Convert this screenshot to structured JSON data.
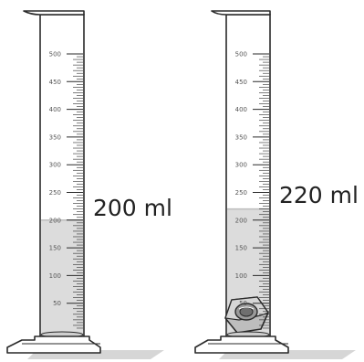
{
  "cylinders": [
    {
      "id": "left",
      "reading_label": "200 ml",
      "liquid_ml": 200,
      "has_object": false,
      "tick_labels": [
        "500",
        "450",
        "400",
        "350",
        "300",
        "250",
        "200",
        "150",
        "100",
        "50"
      ]
    },
    {
      "id": "right",
      "reading_label": "220 ml",
      "liquid_ml": 220,
      "has_object": true,
      "object_icon": "hex-nut-icon",
      "tick_labels": [
        "500",
        "450",
        "400",
        "350",
        "300",
        "250",
        "200",
        "150",
        "100",
        "50"
      ]
    }
  ],
  "scale": {
    "max_ml": 500,
    "major_step_ml": 50,
    "minor_step_ml": 10
  },
  "colors": {
    "outline": "#2a2a2a",
    "liquid": "#dcdcdc",
    "liquid_edge": "#c4c4c4",
    "glass": "#ffffff",
    "shadow": "#d0d0d0",
    "nut_metal": "#b9b9b9"
  }
}
